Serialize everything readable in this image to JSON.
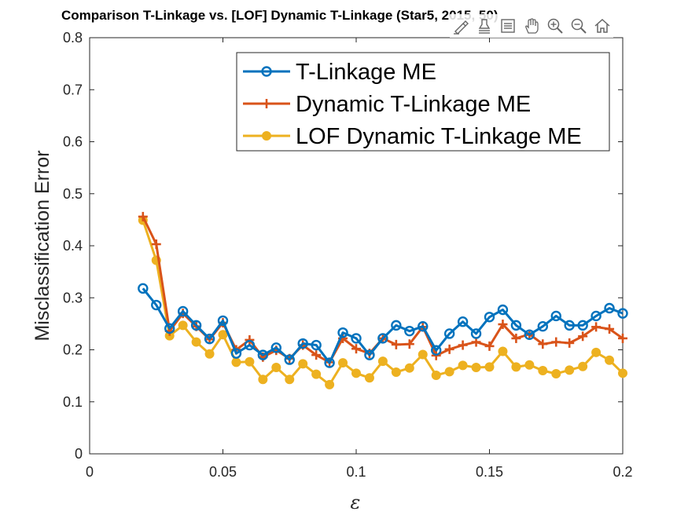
{
  "chart_data": {
    "type": "line",
    "title": "Comparison T-Linkage vs. [LOF] Dynamic T-Linkage (Star5, 2015, 50)",
    "xlabel": "ε",
    "ylabel": "Misclassification Error",
    "xlim": [
      0,
      0.2
    ],
    "ylim": [
      0,
      0.8
    ],
    "xticks": [
      0,
      0.05,
      0.1,
      0.15,
      0.2
    ],
    "xtick_labels": [
      "0",
      "0.05",
      "0.1",
      "0.15",
      "0.2"
    ],
    "yticks": [
      0,
      0.1,
      0.2,
      0.3,
      0.4,
      0.5,
      0.6,
      0.7,
      0.8
    ],
    "ytick_labels": [
      "0",
      "0.1",
      "0.2",
      "0.3",
      "0.4",
      "0.5",
      "0.6",
      "0.7",
      "0.8"
    ],
    "grid": false,
    "legend_position": "top-right",
    "x": [
      0.02,
      0.025,
      0.03,
      0.035,
      0.04,
      0.045,
      0.05,
      0.055,
      0.06,
      0.065,
      0.07,
      0.075,
      0.08,
      0.085,
      0.09,
      0.095,
      0.1,
      0.105,
      0.11,
      0.115,
      0.12,
      0.125,
      0.13,
      0.135,
      0.14,
      0.145,
      0.15,
      0.155,
      0.16,
      0.165,
      0.17,
      0.175,
      0.18,
      0.185,
      0.19,
      0.195,
      0.2
    ],
    "series": [
      {
        "name": "T-Linkage ME",
        "color": "#0072BD",
        "marker": "circle",
        "values": [
          0.318,
          0.286,
          0.241,
          0.274,
          0.247,
          0.221,
          0.256,
          0.193,
          0.209,
          0.19,
          0.204,
          0.181,
          0.212,
          0.209,
          0.175,
          0.233,
          0.222,
          0.19,
          0.222,
          0.247,
          0.236,
          0.245,
          0.199,
          0.231,
          0.254,
          0.231,
          0.263,
          0.277,
          0.247,
          0.229,
          0.245,
          0.265,
          0.247,
          0.247,
          0.265,
          0.28,
          0.27
        ]
      },
      {
        "name": "Dynamic T-Linkage ME",
        "color": "#D95319",
        "marker": "plus",
        "values": [
          0.456,
          0.403,
          0.236,
          0.27,
          0.245,
          0.22,
          0.252,
          0.2,
          0.219,
          0.186,
          0.199,
          0.183,
          0.209,
          0.19,
          0.176,
          0.222,
          0.202,
          0.193,
          0.222,
          0.21,
          0.211,
          0.244,
          0.189,
          0.201,
          0.209,
          0.215,
          0.207,
          0.249,
          0.222,
          0.23,
          0.211,
          0.215,
          0.213,
          0.226,
          0.244,
          0.24,
          0.222
        ]
      },
      {
        "name": "LOF Dynamic T-Linkage ME",
        "color": "#EDB120",
        "marker": "dot",
        "values": [
          0.449,
          0.372,
          0.227,
          0.247,
          0.215,
          0.192,
          0.229,
          0.176,
          0.177,
          0.143,
          0.166,
          0.143,
          0.173,
          0.153,
          0.133,
          0.175,
          0.155,
          0.146,
          0.178,
          0.157,
          0.165,
          0.191,
          0.151,
          0.158,
          0.17,
          0.166,
          0.167,
          0.197,
          0.167,
          0.171,
          0.16,
          0.154,
          0.161,
          0.168,
          0.195,
          0.18,
          0.155
        ]
      }
    ]
  },
  "toolbar": {
    "buttons": [
      "brush-icon",
      "data-tip-icon",
      "legend-icon",
      "pan-icon",
      "zoom-in-icon",
      "zoom-out-icon",
      "home-icon"
    ]
  }
}
